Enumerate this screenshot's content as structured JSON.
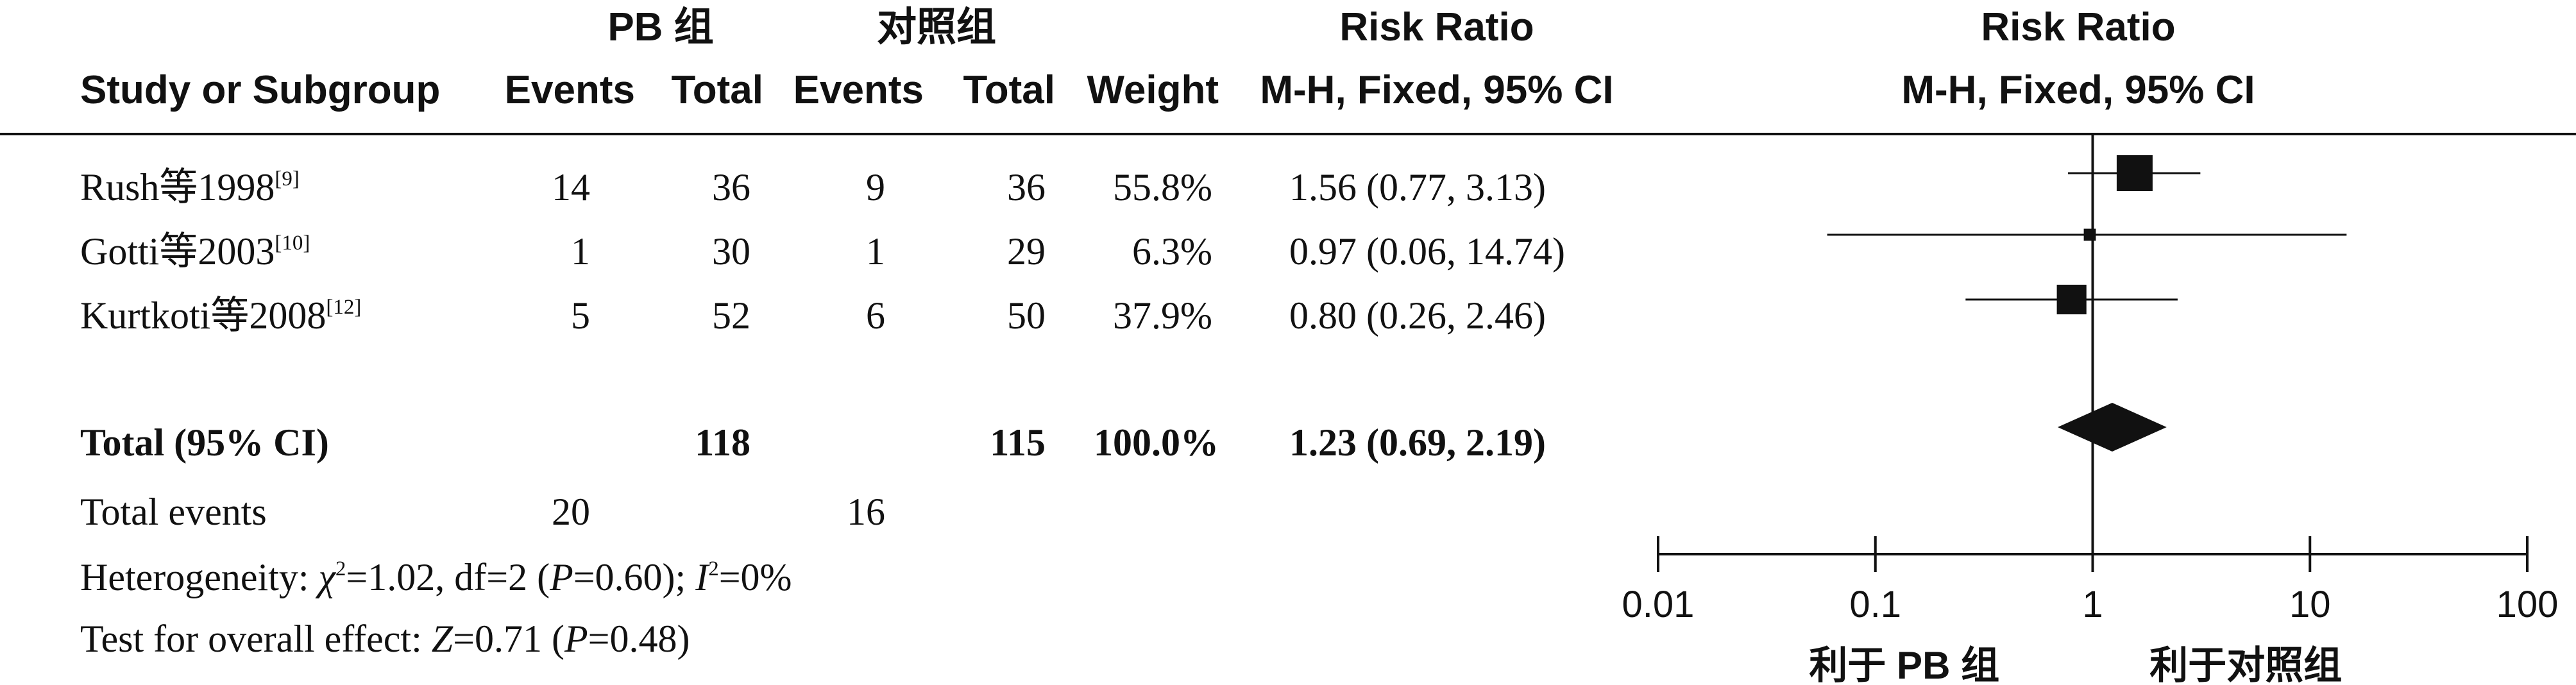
{
  "header": {
    "group1": "PB 组",
    "group2": "对照组",
    "rr_title_table": "Risk Ratio",
    "rr_method_table": "M-H, Fixed, 95% CI",
    "rr_title_plot": "Risk Ratio",
    "rr_method_plot": "M-H, Fixed, 95% CI",
    "study_col": "Study or Subgroup",
    "events1": "Events",
    "total1": "Total",
    "events2": "Events",
    "total2": "Total",
    "weight": "Weight"
  },
  "studies": [
    {
      "name": "Rush等1998",
      "ref": "[9]",
      "e1": "14",
      "t1": "36",
      "e2": "9",
      "t2": "36",
      "weight": "55.8%",
      "ci_text": "1.56 (0.77, 3.13)"
    },
    {
      "name": "Gotti等2003",
      "ref": "[10]",
      "e1": "1",
      "t1": "30",
      "e2": "1",
      "t2": "29",
      "weight": "6.3%",
      "ci_text": "0.97 (0.06, 14.74)"
    },
    {
      "name": "Kurtkoti等2008",
      "ref": "[12]",
      "e1": "5",
      "t1": "52",
      "e2": "6",
      "t2": "50",
      "weight": "37.9%",
      "ci_text": "0.80 (0.26, 2.46)"
    }
  ],
  "total": {
    "label": "Total (95% CI)",
    "t1": "118",
    "t2": "115",
    "weight": "100.0%",
    "ci_text": "1.23 (0.69, 2.19)"
  },
  "total_events": {
    "label": "Total events",
    "e1": "20",
    "e2": "16"
  },
  "heterogeneity": {
    "prefix": "Heterogeneity: ",
    "chi": "χ",
    "chi_sup": "2",
    "mid": "=1.02, df=2 (",
    "p": "P",
    "p_val": "=0.60); ",
    "i": "I",
    "i_sup": "2",
    "i_val": "=0%"
  },
  "overall": {
    "prefix": "Test for overall effect: ",
    "z": "Z",
    "z_val": "=0.71 (",
    "p": "P",
    "p_val": "=0.48)"
  },
  "axis": {
    "ticks": [
      "0.01",
      "0.1",
      "1",
      "10",
      "100"
    ],
    "favours_left": "利于 PB 组",
    "favours_right": "利于对照组"
  },
  "chart_data": {
    "type": "forest",
    "scale": "log",
    "xlim": [
      0.01,
      100
    ],
    "null_line": 1,
    "x_ticks": [
      0.01,
      0.1,
      1,
      10,
      100
    ],
    "studies": [
      {
        "name": "Rush等1998",
        "rr": 1.56,
        "lo": 0.77,
        "hi": 3.13,
        "weight": 55.8
      },
      {
        "name": "Gotti等2003",
        "rr": 0.97,
        "lo": 0.06,
        "hi": 14.74,
        "weight": 6.3
      },
      {
        "name": "Kurtkoti等2008",
        "rr": 0.8,
        "lo": 0.26,
        "hi": 2.46,
        "weight": 37.9
      }
    ],
    "pooled": {
      "rr": 1.23,
      "lo": 0.69,
      "hi": 2.19
    }
  }
}
